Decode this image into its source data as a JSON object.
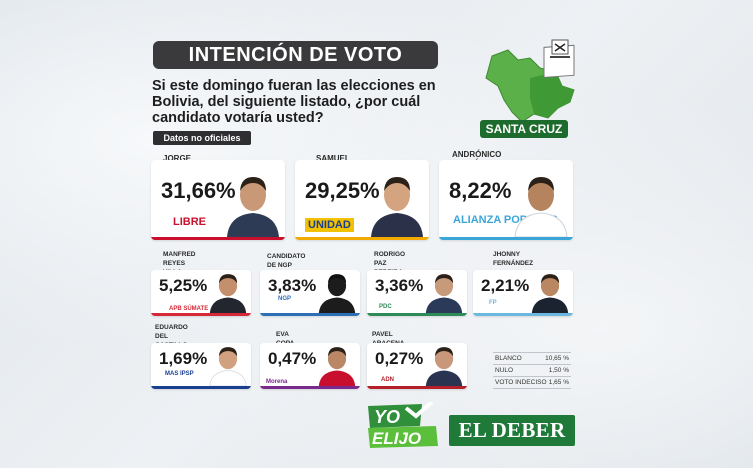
{
  "header": {
    "title": "INTENCIÓN DE VOTO",
    "question": "Si este domingo fueran las elecciones en Bolivia, del siguiente listado, ¿por cuál candidato votaría usted?",
    "disclaimer": "Datos no oficiales"
  },
  "map": {
    "region": "SANTA CRUZ"
  },
  "chart_data": {
    "type": "table",
    "categories": [
      "JORGE TUTO QUIROGA",
      "SAMUEL DORIA MEDINA",
      "ANDRÓNICO RODRÍGUEZ",
      "MANFRED REYES VILLA",
      "CANDIDATO DE NGP",
      "RODRIGO PAZ PEREIRA",
      "JHONNY FERNÁNDEZ",
      "EDUARDO DEL CASTILLO",
      "EVA COPA",
      "PAVEL ARACENA"
    ],
    "values": [
      31.66,
      29.25,
      8.22,
      5.25,
      3.83,
      3.36,
      2.21,
      1.69,
      0.47,
      0.27
    ],
    "title": "INTENCIÓN DE VOTO",
    "candidates": [
      {
        "name_line1": "JORGE TUTO",
        "name_line2": "QUIROGA",
        "pct_text": "31,66%",
        "value": 31.66,
        "party": "LIBRE",
        "color": "#c8102e"
      },
      {
        "name_line1": "SAMUEL",
        "name_line2": "DORIA MEDINA",
        "pct_text": "29,25%",
        "value": 29.25,
        "party": "UNIDAD",
        "color": "#f2a900"
      },
      {
        "name_line1": "ANDRÓNICO",
        "name_line2": "RODRÍGUEZ",
        "pct_text": "8,22%",
        "value": 8.22,
        "party": "ALIANZA POPULAR",
        "color": "#3aa6d8"
      },
      {
        "name_line1": "MANFRED",
        "name_line2": "REYES VILLA",
        "pct_text": "5,25%",
        "value": 5.25,
        "party": "APB SÚMATE",
        "color": "#d62839"
      },
      {
        "name_line1": "CANDIDATO",
        "name_line2": "DE NGP",
        "pct_text": "3,83%",
        "value": 3.83,
        "party": "NGP",
        "color": "#2c6fb7"
      },
      {
        "name_line1": "RODRIGO",
        "name_line2": "PAZ PEREIRA",
        "pct_text": "3,36%",
        "value": 3.36,
        "party": "PDC",
        "color": "#2e8b57"
      },
      {
        "name_line1": "JHONNY",
        "name_line2": "FERNÁNDEZ",
        "pct_text": "2,21%",
        "value": 2.21,
        "party": "FP",
        "color": "#6bb7e0"
      },
      {
        "name_line1": "EDUARDO",
        "name_line2": "DEL CASTILLO",
        "pct_text": "1,69%",
        "value": 1.69,
        "party": "MAS IPSP",
        "color": "#1b3f8f"
      },
      {
        "name_line1": "EVA COPA",
        "name_line2": "",
        "pct_text": "0,47%",
        "value": 0.47,
        "party": "Morena",
        "color": "#7a2a8c"
      },
      {
        "name_line1": "PAVEL ARACENA",
        "name_line2": "",
        "pct_text": "0,27%",
        "value": 0.27,
        "party": "ADN",
        "color": "#b51f2a"
      }
    ],
    "others": [
      {
        "label": "BLANCO",
        "value_text": "10,65 %",
        "value": 10.65
      },
      {
        "label": "NULO",
        "value_text": "1,50 %",
        "value": 1.5
      },
      {
        "label": "VOTO INDECISO",
        "value_text": "1,65 %",
        "value": 1.65
      }
    ]
  },
  "branding": {
    "yo_line1": "YO",
    "yo_line2": "ELIJO",
    "deber": "EL DEBER"
  }
}
